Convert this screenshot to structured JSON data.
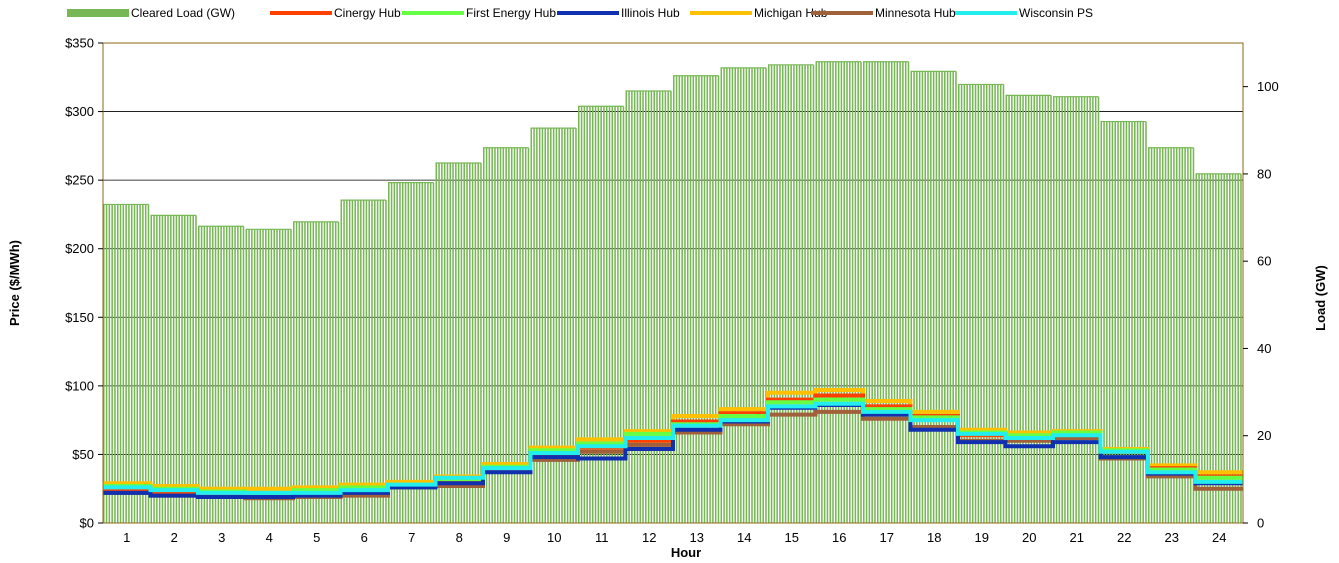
{
  "chart_data": {
    "type": "bar+line",
    "title": "",
    "xlabel": "Hour",
    "ylabel_left": "Price ($/MWh)",
    "ylabel_right": "Load (GW)",
    "hours": [
      1,
      2,
      3,
      4,
      5,
      6,
      7,
      8,
      9,
      10,
      11,
      12,
      13,
      14,
      15,
      16,
      17,
      18,
      19,
      20,
      21,
      22,
      23,
      24
    ],
    "x_tick_labels": [
      "1",
      "2",
      "3",
      "4",
      "5",
      "6",
      "7",
      "8",
      "9",
      "10",
      "11",
      "12",
      "13",
      "14",
      "15",
      "16",
      "17",
      "18",
      "19",
      "20",
      "21",
      "22",
      "23",
      "24"
    ],
    "y_left": {
      "min": 0,
      "max": 350,
      "step": 50,
      "tick_labels": [
        "$0",
        "$50",
        "$100",
        "$150",
        "$200",
        "$250",
        "$300",
        "$350"
      ]
    },
    "y_right": {
      "min": 0,
      "max": 110,
      "step": 20,
      "tick_labels": [
        "0",
        "20",
        "40",
        "60",
        "80",
        "100"
      ]
    },
    "grid": true,
    "legend_position": "top",
    "load": {
      "name": "Cleared Load (GW)",
      "color": "#77b755",
      "values": [
        73,
        70.5,
        68,
        67.3,
        69,
        74,
        78,
        82.5,
        86,
        90.5,
        95.5,
        99,
        102.5,
        104.3,
        105,
        105.7,
        105.7,
        103.5,
        100.5,
        98,
        97.7,
        92,
        86,
        80
      ]
    },
    "series": [
      {
        "name": "Cinergy Hub",
        "color": "#ff4000",
        "values": [
          24,
          22,
          21,
          21,
          22,
          24,
          27,
          30,
          38,
          50,
          55,
          60,
          74,
          80,
          90,
          93,
          85,
          78,
          64,
          63,
          65,
          52,
          40,
          34
        ]
      },
      {
        "name": "First Energy Hub",
        "color": "#66ff44",
        "values": [
          27,
          25,
          23,
          22,
          24,
          26,
          28,
          32,
          41,
          53,
          58,
          65,
          72,
          78,
          88,
          90,
          83,
          77,
          66,
          64,
          66,
          53,
          39,
          33
        ]
      },
      {
        "name": "Illinois Hub",
        "color": "#1030b0",
        "values": [
          22,
          20,
          19,
          19,
          20,
          22,
          26,
          29,
          37,
          48,
          47,
          54,
          68,
          74,
          84,
          86,
          79,
          68,
          59,
          56,
          59,
          48,
          36,
          29
        ]
      },
      {
        "name": "Michigan Hub",
        "color": "#ffc000",
        "values": [
          29,
          27,
          25,
          25,
          26,
          28,
          30,
          34,
          43,
          55,
          61,
          67,
          78,
          83,
          95,
          97,
          89,
          81,
          68,
          66,
          67,
          54,
          42,
          37
        ]
      },
      {
        "name": "Minnesota Hub",
        "color": "#a0603a",
        "values": [
          22,
          20,
          19,
          18,
          19,
          20,
          26,
          27,
          38,
          46,
          52,
          57,
          66,
          72,
          79,
          81,
          76,
          70,
          60,
          60,
          62,
          47,
          34,
          25
        ]
      },
      {
        "name": "Wisconsin PS",
        "color": "#22eeee",
        "values": [
          26,
          24,
          22,
          22,
          22,
          24,
          28,
          33,
          40,
          51,
          56,
          62,
          71,
          75,
          85,
          87,
          81,
          75,
          65,
          62,
          64,
          52,
          37,
          30
        ]
      }
    ]
  }
}
